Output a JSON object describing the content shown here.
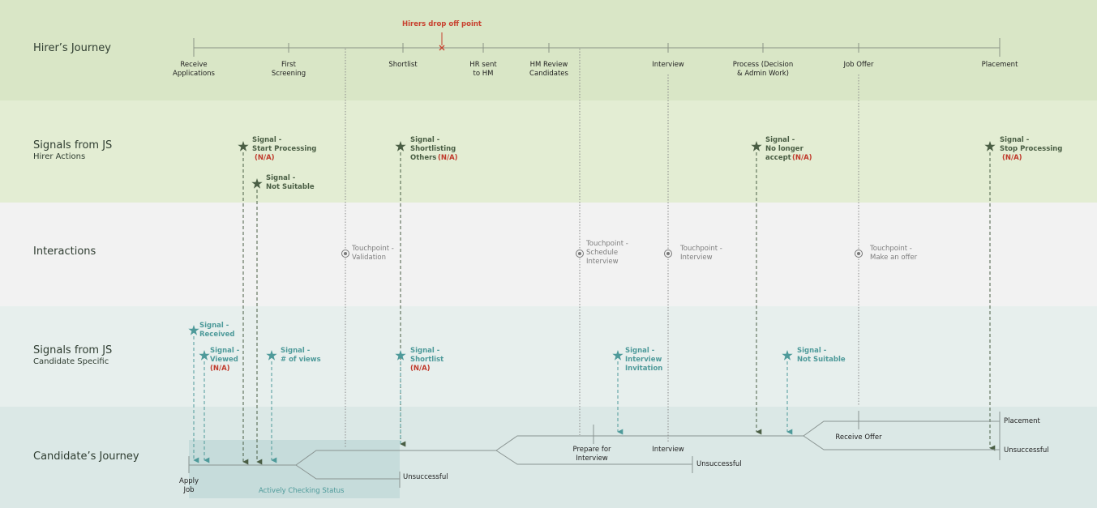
{
  "bands": {
    "hirer_journey": "Hirer’s Journey",
    "signals_hirer": "Signals from JS",
    "signals_hirer_sub": "Hirer Actions",
    "interactions": "Interactions",
    "signals_candidate": "Signals from JS",
    "signals_candidate_sub": "Candidate Specific",
    "candidate_journey": "Candidate’s Journey"
  },
  "drop_off": "Hirers drop off point",
  "hirer_steps": {
    "receive": "Receive\nApplications",
    "first": "First\nScreening",
    "shortlist": "Shortlist",
    "hr_sent": "HR sent\nto HM",
    "hm_review": "HM Review\nCandidates",
    "interview": "Interview",
    "process": "Process (Decision\n& Admin Work)",
    "job_offer": "Job Offer",
    "placement": "Placement"
  },
  "hirer_signals": {
    "start": "Signal -\nStart Processing",
    "not_suitable": "Signal -\nNot Suitable",
    "shortlisting": "Signal -\nShortlisting\nOthers",
    "no_longer": "Signal -\nNo longer\naccept",
    "stop": "Signal -\nStop Processing"
  },
  "na": "(N/A)",
  "touchpoints": {
    "validation": "Touchpoint -\nValidation",
    "schedule": "Touchpoint -\nSchedule\nInterview",
    "interview": "Touchpoint -\nInterview",
    "offer": "Touchpoint -\nMake an offer"
  },
  "candidate_signals": {
    "received": "Signal -\nReceived",
    "viewed": "Signal -\nViewed",
    "views": "Signal -\n# of views",
    "shortlist": "Signal -\nShortlist",
    "invitation": "Signal -\nInterview\nInvitation",
    "not_suitable": "Signal -\nNot Suitable"
  },
  "candidate_labels": {
    "apply": "Apply\nJob",
    "checking": "Actively Checking Status",
    "unsuccessful": "Unsuccessful",
    "prepare": "Prepare for\nInterview",
    "interview": "Interview",
    "receive_offer": "Receive Offer",
    "placement": "Placement"
  },
  "colors": {
    "band1": "#d9e6c6",
    "band2": "#e3edd3",
    "band3": "#f2f2f2",
    "band4": "#e7efed",
    "band5": "#dbe8e6",
    "checking_box": "#c6dcdb",
    "hirer_green": "#4a5e44",
    "candidate_teal": "#4e9a9a",
    "touchpoint_gray": "#7d7d7d",
    "na_red": "#c0392b"
  }
}
